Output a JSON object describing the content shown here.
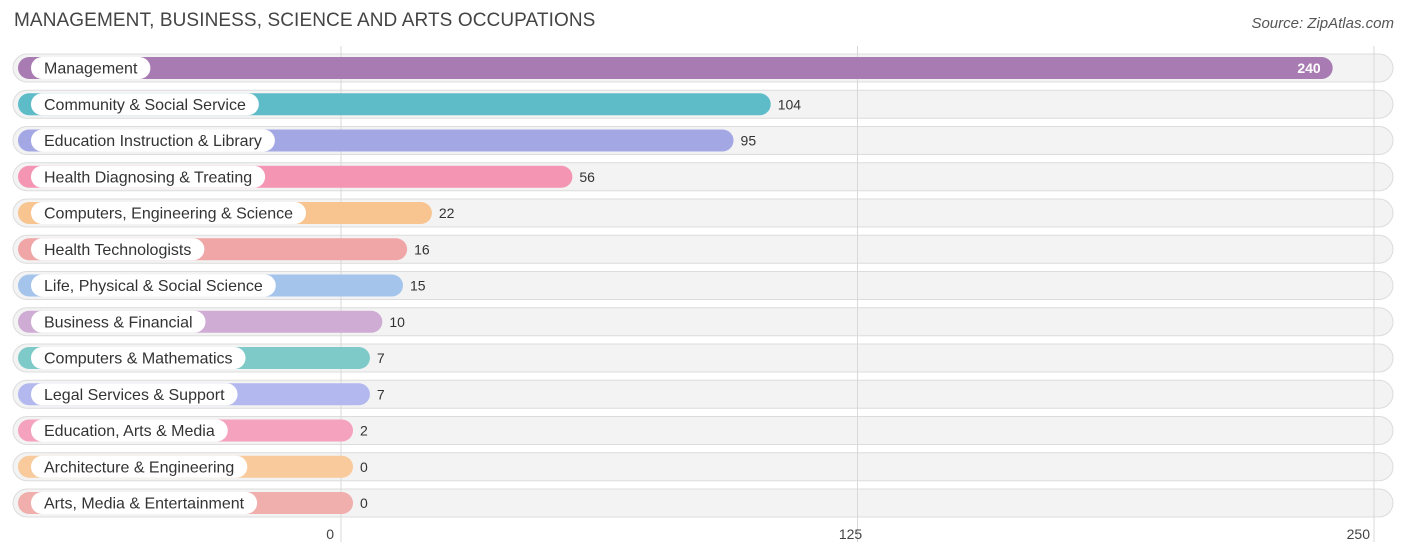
{
  "chart_data": {
    "type": "bar",
    "orientation": "horizontal",
    "title": "MANAGEMENT, BUSINESS, SCIENCE AND ARTS OCCUPATIONS",
    "source": "Source: ZipAtlas.com",
    "categories": [
      "Management",
      "Community & Social Service",
      "Education Instruction & Library",
      "Health Diagnosing & Treating",
      "Computers, Engineering & Science",
      "Health Technologists",
      "Life, Physical & Social Science",
      "Business & Financial",
      "Computers & Mathematics",
      "Legal Services & Support",
      "Education, Arts & Media",
      "Architecture & Engineering",
      "Arts, Media & Entertainment"
    ],
    "values": [
      240,
      104,
      95,
      56,
      22,
      16,
      15,
      10,
      7,
      7,
      2,
      0,
      0
    ],
    "colors": [
      "#a87bb3",
      "#5ebcc9",
      "#a3a8e4",
      "#f495b4",
      "#f8c48f",
      "#f0a6a6",
      "#a4c4ec",
      "#cfacd4",
      "#7dcac9",
      "#b3b8ef",
      "#f5a2be",
      "#f8ca9c",
      "#f0aeac"
    ],
    "xlim": [
      0,
      250
    ],
    "xticks": [
      0,
      125,
      250
    ],
    "xlabel": "",
    "ylabel": "",
    "grid": true
  }
}
